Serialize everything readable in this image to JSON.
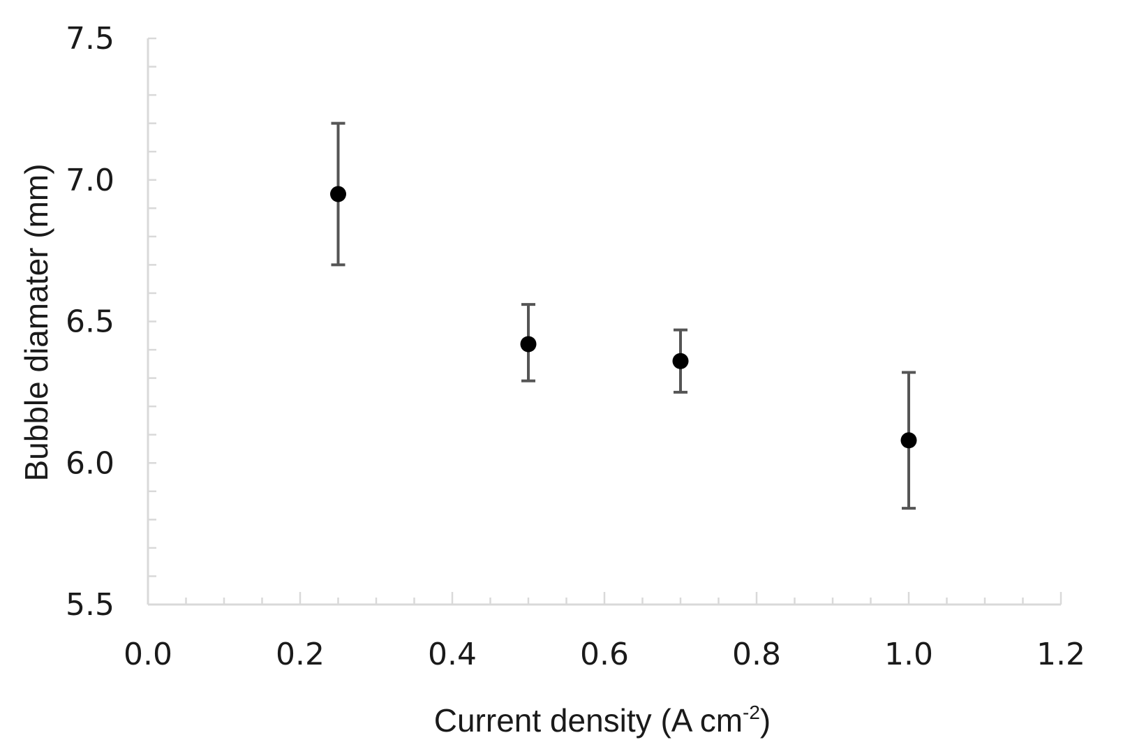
{
  "chart_data": {
    "type": "scatter",
    "xlabel": "Current density (A cm",
    "xlabel_sup": "-2",
    "xlabel_end": ")",
    "ylabel": "Bubble diamater (mm)",
    "xlim": [
      0.0,
      1.2
    ],
    "ylim": [
      5.5,
      7.5
    ],
    "xticks": [
      "0.0",
      "0.2",
      "0.4",
      "0.6",
      "0.8",
      "1.0",
      "1.2"
    ],
    "yticks": [
      "5.5",
      "6.0",
      "6.5",
      "7.0",
      "7.5"
    ],
    "grid": false,
    "legend": "none",
    "points": [
      {
        "x": 0.25,
        "y": 6.95,
        "err_low": 6.7,
        "err_high": 7.2
      },
      {
        "x": 0.5,
        "y": 6.42,
        "err_low": 6.29,
        "err_high": 6.56
      },
      {
        "x": 0.7,
        "y": 6.36,
        "err_low": 6.25,
        "err_high": 6.47
      },
      {
        "x": 1.0,
        "y": 6.08,
        "err_low": 5.84,
        "err_high": 6.32
      }
    ],
    "colors": {
      "axis": "#d9d9d9",
      "marker": "#000000",
      "errorbar": "#555555"
    }
  }
}
